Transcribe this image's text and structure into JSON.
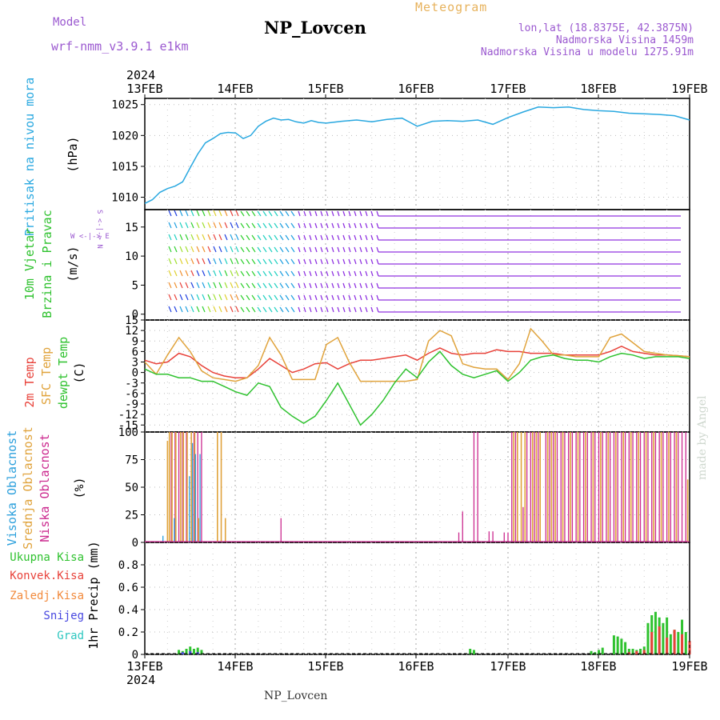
{
  "header": {
    "model_label": "Model",
    "model_name": "wrf-nmm_v3.9.1 e1km",
    "station": "NP_Lovcen",
    "meteogram": "Meteogram",
    "lonlat": "lon,lat (18.8375E, 42.3875N)",
    "elevation": "Nadmorska Visina 1459m",
    "model_elevation": "Nadmorska Visina u modelu 1275.91m"
  },
  "footer": {
    "station": "NP_Lovcen"
  },
  "watermark": "made by Angel",
  "time_axis": {
    "year": "2024",
    "ticks": [
      "13FEB",
      "14FEB",
      "15FEB",
      "16FEB",
      "17FEB",
      "18FEB",
      "19FEB"
    ]
  },
  "panel_labels": {
    "pressure": {
      "name": "Pritisak na nivou mora",
      "unit": "(hPa)"
    },
    "wind": {
      "name1": "10m Vjetar",
      "name2": "Brzina i Pravac",
      "unit": "(m/s)",
      "compass": "W <-|-> E",
      "compass_ns": "S <-|-> N"
    },
    "temp": {
      "t2": "2m Temp",
      "sfc": "SFC Temp",
      "dew": "dewpt Temp",
      "unit": "(C)"
    },
    "cloud": {
      "high": "Visoka Oblacnost",
      "mid": "Srednja Oblacnost",
      "low": "Niska Oblacnost",
      "unit": "(%)"
    },
    "precip": {
      "total": "Ukupna Kisa",
      "conv": "Konvek.Kisa",
      "frz": "Zaledj.Kisa",
      "snow": "Snijeg",
      "hail": "Grad",
      "unit": "1hr Precip (mm)"
    }
  },
  "colors": {
    "pressure": "#29a8e0",
    "t2": "#e8423a",
    "sfc": "#e0a33c",
    "dew": "#2fc22f",
    "cloud_high": "#2a9fdc",
    "cloud_mid": "#e0a33c",
    "cloud_low": "#cc2a8f",
    "precip_total": "#2fc22f",
    "precip_conv": "#e8423a",
    "precip_frz": "#f28a3c",
    "snow": "#4848e0",
    "hail": "#2ec7c0",
    "wind_calm": "#8b2be0"
  },
  "chart_data": [
    {
      "type": "line",
      "name": "pressure",
      "ylabel": "(hPa)",
      "ylim": [
        1008,
        1026
      ],
      "yticks": [
        1010,
        1015,
        1020,
        1025
      ],
      "xlim": [
        0,
        144
      ],
      "grid": true,
      "x": [
        0,
        2,
        4,
        6,
        8,
        10,
        12,
        14,
        16,
        18,
        20,
        22,
        24,
        26,
        28,
        30,
        32,
        34,
        36,
        38,
        40,
        42,
        44,
        46,
        48,
        52,
        56,
        60,
        64,
        68,
        72,
        76,
        80,
        84,
        88,
        92,
        96,
        100,
        104,
        108,
        112,
        116,
        120,
        124,
        128,
        132,
        136,
        140,
        144
      ],
      "values": [
        1009.0,
        1009.6,
        1010.8,
        1011.4,
        1011.8,
        1012.5,
        1014.8,
        1017.0,
        1018.8,
        1019.5,
        1020.3,
        1020.5,
        1020.4,
        1019.5,
        1020.0,
        1021.5,
        1022.3,
        1022.8,
        1022.5,
        1022.6,
        1022.2,
        1022.0,
        1022.4,
        1022.1,
        1022.0,
        1022.3,
        1022.5,
        1022.2,
        1022.6,
        1022.8,
        1021.5,
        1022.3,
        1022.4,
        1022.3,
        1022.5,
        1021.8,
        1022.9,
        1023.8,
        1024.6,
        1024.5,
        1024.6,
        1024.2,
        1024.0,
        1023.9,
        1023.6,
        1023.5,
        1023.4,
        1023.2,
        1022.5
      ]
    },
    {
      "type": "line",
      "name": "temperature",
      "ylabel": "(C)",
      "ylim": [
        -17,
        15
      ],
      "yticks": [
        -15,
        -12,
        -9,
        -6,
        -3,
        0,
        3,
        6,
        9,
        12,
        15
      ],
      "xlim": [
        0,
        144
      ],
      "grid": true,
      "x": [
        0,
        3,
        6,
        9,
        12,
        15,
        18,
        21,
        24,
        27,
        30,
        33,
        36,
        39,
        42,
        45,
        48,
        51,
        54,
        57,
        60,
        63,
        66,
        69,
        72,
        75,
        78,
        81,
        84,
        87,
        90,
        93,
        96,
        99,
        102,
        105,
        108,
        111,
        114,
        117,
        120,
        123,
        126,
        129,
        132,
        135,
        138,
        141,
        144
      ],
      "series": [
        {
          "name": "2m Temp",
          "values": [
            3.5,
            2.5,
            3.0,
            5.5,
            4.5,
            2.0,
            0.0,
            -1.0,
            -1.5,
            -1.5,
            1.0,
            4.0,
            2.0,
            0.0,
            1.0,
            2.5,
            2.8,
            1.0,
            2.5,
            3.5,
            3.5,
            4.0,
            4.5,
            5.0,
            3.5,
            5.5,
            7.0,
            5.5,
            5.0,
            5.5,
            5.5,
            6.5,
            6.0,
            6.0,
            5.5,
            5.5,
            5.5,
            5.0,
            5.0,
            5.0,
            5.0,
            6.0,
            7.5,
            6.0,
            5.5,
            5.0,
            5.0,
            4.8,
            4.5
          ]
        },
        {
          "name": "SFC Temp",
          "values": [
            3.0,
            -0.5,
            5.0,
            10.0,
            6.0,
            0.5,
            -1.5,
            -2.0,
            -2.5,
            -1.5,
            2.0,
            10.0,
            5.0,
            -2.0,
            -2.0,
            -2.0,
            8.0,
            10.0,
            3.0,
            -2.5,
            -2.5,
            -2.5,
            -2.5,
            -2.5,
            -2.0,
            9.0,
            12.0,
            10.5,
            2.5,
            1.5,
            1.0,
            1.0,
            -2.0,
            2.5,
            12.5,
            9.0,
            5.0,
            5.0,
            4.5,
            4.5,
            4.5,
            10.0,
            11.0,
            8.5,
            6.0,
            5.5,
            5.0,
            4.8,
            4.5
          ]
        },
        {
          "name": "dewpt Temp",
          "values": [
            1.0,
            -0.5,
            -0.5,
            -1.5,
            -1.5,
            -2.5,
            -2.5,
            -4.0,
            -5.5,
            -6.5,
            -3.0,
            -4.0,
            -10.0,
            -12.5,
            -14.5,
            -12.5,
            -8.0,
            -3.0,
            -9.0,
            -15.0,
            -12.0,
            -8.0,
            -3.0,
            1.0,
            -1.5,
            3.0,
            6.0,
            2.0,
            -0.5,
            -1.5,
            -0.5,
            0.5,
            -2.5,
            0.0,
            3.5,
            4.5,
            5.0,
            4.0,
            3.5,
            3.5,
            3.0,
            4.5,
            5.5,
            5.0,
            4.0,
            4.5,
            4.5,
            4.5,
            4.0
          ]
        }
      ]
    },
    {
      "type": "bar",
      "name": "cloud_cover",
      "ylabel": "(%)",
      "ylim": [
        0,
        100
      ],
      "yticks": [
        0,
        25,
        50,
        75,
        100
      ],
      "xlim": [
        0,
        144
      ],
      "series": [
        {
          "name": "Niska Oblacnost",
          "x": [
            7,
            8,
            9,
            10,
            11,
            13,
            14,
            15,
            36,
            83,
            84,
            87,
            88,
            91,
            92,
            95,
            96,
            97,
            98,
            100,
            101,
            102,
            103,
            104,
            106,
            107,
            108,
            109,
            110,
            111,
            112,
            113,
            114,
            115,
            116,
            117,
            118,
            119,
            120,
            121,
            122,
            123,
            124,
            125,
            126,
            127,
            128,
            129,
            130,
            131,
            132,
            133,
            134,
            135,
            136,
            137,
            138,
            139,
            140,
            141,
            142,
            143
          ],
          "values": [
            100,
            100,
            100,
            100,
            100,
            100,
            100,
            100,
            22,
            9,
            28,
            100,
            100,
            10,
            10,
            9,
            9,
            100,
            100,
            32,
            100,
            100,
            100,
            100,
            100,
            100,
            100,
            100,
            100,
            100,
            100,
            100,
            100,
            100,
            100,
            100,
            100,
            100,
            100,
            100,
            100,
            100,
            100,
            100,
            100,
            100,
            100,
            100,
            100,
            100,
            100,
            100,
            100,
            100,
            100,
            100,
            100,
            100,
            100,
            100,
            100,
            100
          ]
        },
        {
          "name": "Srednja Oblacnost",
          "x": [
            6,
            6.5,
            7.2,
            8.2,
            9.5,
            10.2,
            11.2,
            12.3,
            13.2,
            14.2,
            19.2,
            20.2,
            21.3,
            97.5,
            98.5,
            99.5,
            100.5,
            102.5,
            103.5,
            104.5,
            106.5,
            107.5,
            108.5,
            110.5,
            112.5,
            114.5,
            116.5,
            118.5,
            120.5,
            122.5,
            124.5,
            126.5,
            128.5,
            130.5,
            132.5,
            134.5,
            136.5,
            138.5,
            140.5,
            143.5
          ],
          "values": [
            92,
            100,
            100,
            100,
            100,
            100,
            100,
            100,
            100,
            22,
            100,
            100,
            22,
            100,
            100,
            100,
            100,
            100,
            100,
            100,
            100,
            100,
            100,
            100,
            100,
            100,
            100,
            100,
            100,
            100,
            100,
            100,
            100,
            100,
            100,
            100,
            100,
            100,
            100,
            57
          ]
        },
        {
          "name": "Visoka Oblacnost",
          "x": [
            4.8,
            7.8,
            11.8,
            12.6,
            13.4,
            14.6
          ],
          "values": [
            6,
            22,
            60,
            90,
            80,
            80
          ]
        }
      ]
    },
    {
      "type": "bar",
      "name": "precip",
      "ylabel": "1hr Precip (mm)",
      "ylim": [
        0,
        1.0
      ],
      "yticks": [
        0,
        0.2,
        0.4,
        0.6,
        0.8
      ],
      "xlim": [
        0,
        144
      ],
      "series": [
        {
          "name": "Ukupna Kisa",
          "x": [
            9,
            10,
            11,
            12,
            13,
            14,
            15,
            86,
            87,
            118,
            119,
            120,
            121,
            124,
            125,
            126,
            127,
            128,
            129,
            130,
            131,
            132,
            133,
            134,
            135,
            136,
            137,
            138,
            139,
            140,
            141,
            142,
            143
          ],
          "values": [
            0.04,
            0.03,
            0.05,
            0.07,
            0.05,
            0.06,
            0.04,
            0.05,
            0.04,
            0.03,
            0.02,
            0.04,
            0.06,
            0.17,
            0.16,
            0.14,
            0.11,
            0.05,
            0.05,
            0.04,
            0.05,
            0.07,
            0.28,
            0.35,
            0.38,
            0.33,
            0.28,
            0.33,
            0.18,
            0.22,
            0.2,
            0.31,
            0.2
          ]
        },
        {
          "name": "Konvek.Kisa",
          "x": [
            128,
            130,
            132,
            134,
            136,
            138,
            140,
            142,
            144
          ],
          "values": [
            0.02,
            0.03,
            0.04,
            0.2,
            0.25,
            0.15,
            0.22,
            0.18,
            0.12
          ]
        },
        {
          "name": "Zaledj.Kisa",
          "x": [],
          "values": []
        },
        {
          "name": "Snijeg",
          "x": [
            10,
            12,
            14
          ],
          "values": [
            0.02,
            0.03,
            0.02
          ]
        },
        {
          "name": "Grad",
          "x": [],
          "values": []
        }
      ]
    }
  ]
}
